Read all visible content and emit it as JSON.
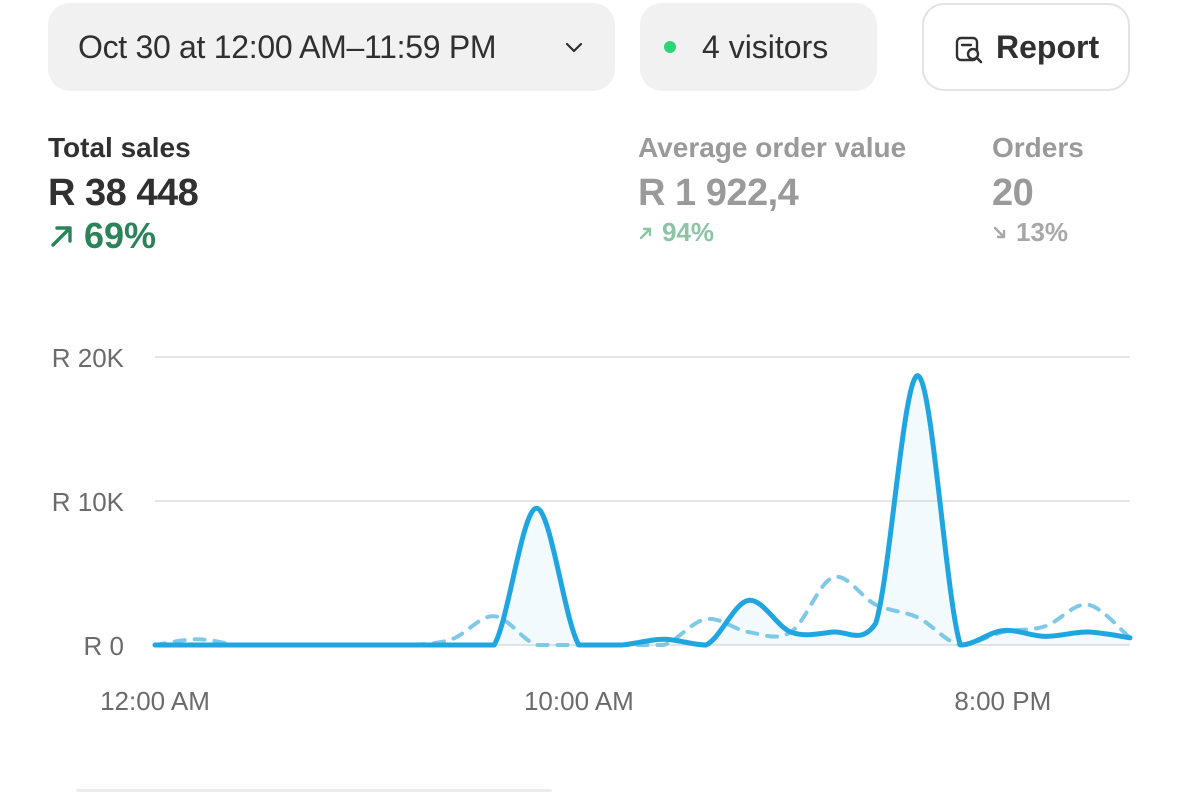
{
  "filters": {
    "date_range": "Oct 30 at 12:00 AM–11:59 PM",
    "visitors": "4 visitors",
    "report_label": "Report",
    "visitor_dot_color": "#2fd479"
  },
  "metrics": {
    "total_sales": {
      "label": "Total sales",
      "value": "R 38 448",
      "change": "69%",
      "direction": "up"
    },
    "avg_order_value": {
      "label": "Average order value",
      "value": "R 1 922,4",
      "change": "94%",
      "direction": "up"
    },
    "orders": {
      "label": "Orders",
      "value": "20",
      "change": "13%",
      "direction": "down"
    }
  },
  "chart_data": {
    "type": "line",
    "y_tick_labels": [
      "R 0",
      "R 10K",
      "R 20K"
    ],
    "y_ticks": [
      0,
      10000,
      20000
    ],
    "ylim": [
      0,
      20000
    ],
    "x_tick_labels": [
      "12:00 AM",
      "10:00 AM",
      "8:00 PM"
    ],
    "x_ticks": [
      0,
      10,
      20
    ],
    "xlim": [
      0,
      23
    ],
    "x": [
      0,
      1,
      2,
      3,
      4,
      5,
      6,
      7,
      8,
      9,
      10,
      11,
      12,
      13,
      14,
      15,
      16,
      17,
      18,
      19,
      20,
      21,
      22,
      23
    ],
    "series": [
      {
        "style": "solid",
        "color": "#1fa6e1",
        "values": [
          0,
          0,
          0,
          0,
          0,
          0,
          0,
          0,
          0,
          9500,
          0,
          0,
          400,
          0,
          3100,
          900,
          900,
          1500,
          18700,
          0,
          1000,
          600,
          900,
          500
        ]
      },
      {
        "style": "dashed",
        "color": "#7ec8e8",
        "values": [
          0,
          400,
          0,
          0,
          0,
          0,
          0,
          400,
          2000,
          0,
          0,
          0,
          0,
          1800,
          900,
          900,
          4700,
          2800,
          1900,
          0,
          900,
          1300,
          2800,
          500
        ]
      }
    ],
    "grid": true
  }
}
